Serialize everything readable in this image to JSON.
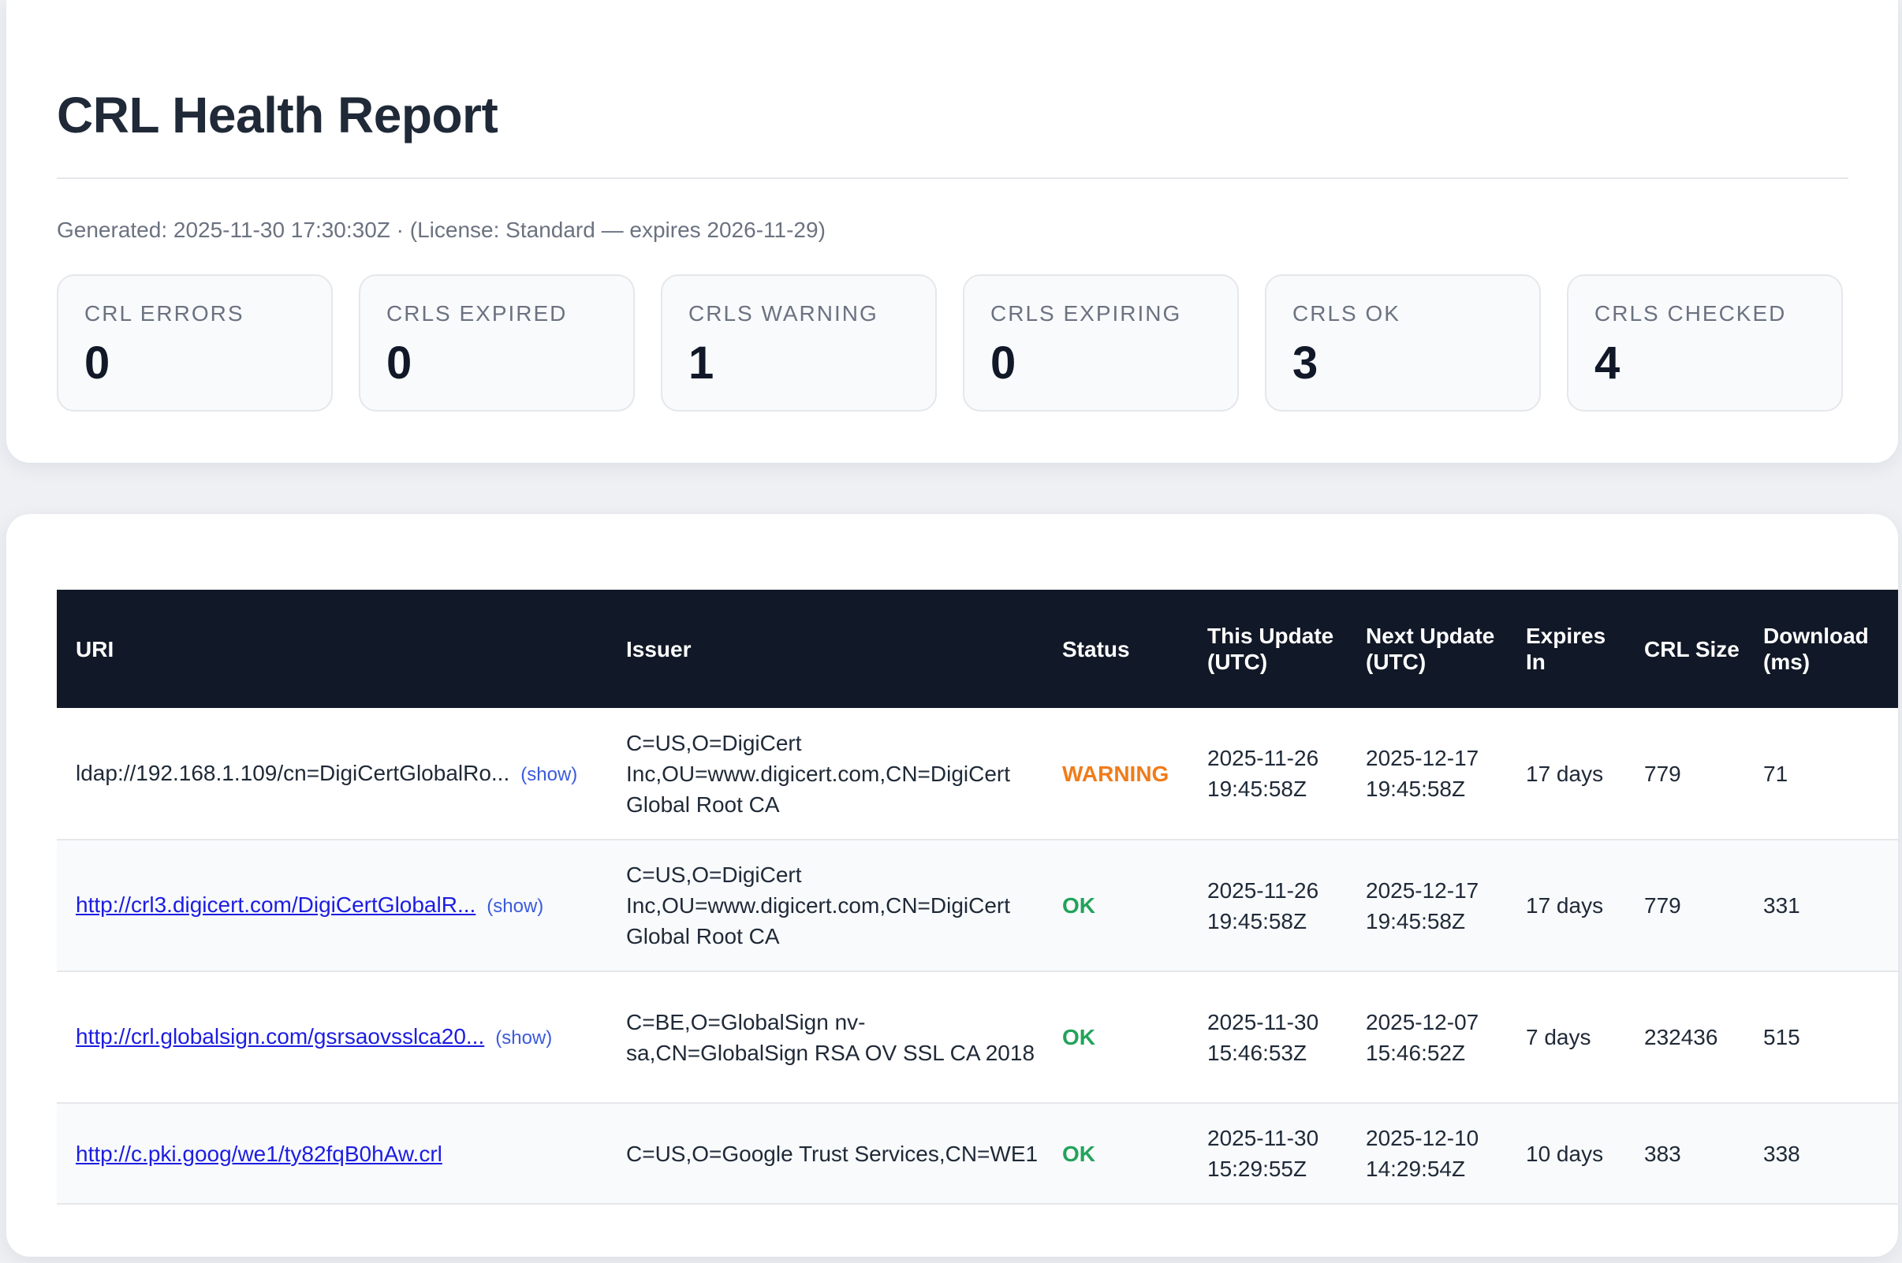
{
  "report": {
    "title": "CRL Health Report",
    "meta": "Generated: 2025-11-30 17:30:30Z · (License: Standard — expires 2026-11-29)"
  },
  "stats": [
    {
      "label": "CRL ERRORS",
      "value": "0"
    },
    {
      "label": "CRLS EXPIRED",
      "value": "0"
    },
    {
      "label": "CRLS WARNING",
      "value": "1"
    },
    {
      "label": "CRLS EXPIRING",
      "value": "0"
    },
    {
      "label": "CRLS OK",
      "value": "3"
    },
    {
      "label": "CRLS CHECKED",
      "value": "4"
    }
  ],
  "table": {
    "headers": {
      "uri": "URI",
      "issuer": "Issuer",
      "status": "Status",
      "this_update": "This Update (UTC)",
      "next_update": "Next Update (UTC)",
      "expires_in": "Expires In",
      "crl_size": "CRL Size",
      "download": "Download (ms)"
    },
    "rows": [
      {
        "uri": "ldap://192.168.1.109/cn=DigiCertGlobalRo...",
        "show": "(show)",
        "issuer": "C=US,O=DigiCert Inc,OU=www.digicert.com,CN=DigiCert Global Root CA",
        "status": "WARNING",
        "this_update": "2025-11-26 19:45:58Z",
        "next_update": "2025-12-17 19:45:58Z",
        "expires_in": "17 days",
        "crl_size": "779",
        "download": "71"
      },
      {
        "uri": "http://crl3.digicert.com/DigiCertGlobalR...",
        "show": "(show)",
        "issuer": "C=US,O=DigiCert Inc,OU=www.digicert.com,CN=DigiCert Global Root CA",
        "status": "OK",
        "this_update": "2025-11-26 19:45:58Z",
        "next_update": "2025-12-17 19:45:58Z",
        "expires_in": "17 days",
        "crl_size": "779",
        "download": "331"
      },
      {
        "uri": "http://crl.globalsign.com/gsrsaovsslca20...",
        "show": "(show)",
        "issuer": "C=BE,O=GlobalSign nv-sa,CN=GlobalSign RSA OV SSL CA 2018",
        "status": "OK",
        "this_update": "2025-11-30 15:46:53Z",
        "next_update": "2025-12-07 15:46:52Z",
        "expires_in": "7 days",
        "crl_size": "232436",
        "download": "515"
      },
      {
        "uri": "http://c.pki.goog/we1/ty82fqB0hAw.crl",
        "issuer": "C=US,O=Google Trust Services,CN=WE1",
        "status": "OK",
        "this_update": "2025-11-30 15:29:55Z",
        "next_update": "2025-12-10 14:29:54Z",
        "expires_in": "10 days",
        "crl_size": "383",
        "download": "338"
      }
    ]
  },
  "colors": {
    "header_bg": "#111827",
    "status_warning": "#f07c1a",
    "status_ok": "#22a35a",
    "link": "#1d1de0"
  }
}
